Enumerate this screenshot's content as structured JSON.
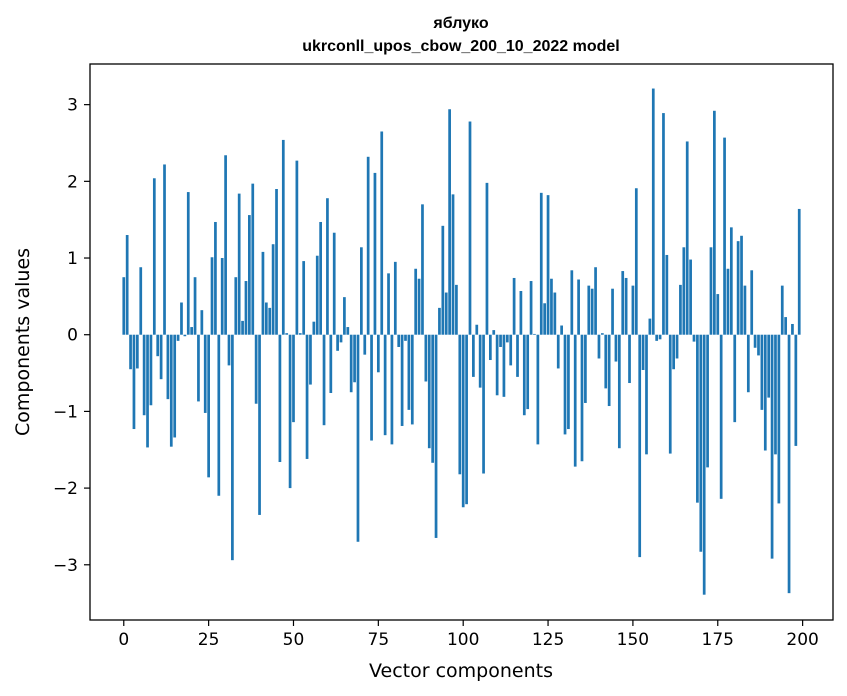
{
  "chart_data": {
    "type": "bar",
    "title_line1": "яблуко",
    "title_line2": "ukrconll_upos_cbow_200_10_2022 model",
    "xlabel": "Vector components",
    "ylabel": "Components values",
    "xlim": [
      -9.95,
      208.95
    ],
    "ylim": [
      -3.72,
      3.53
    ],
    "xticks": [
      0,
      25,
      50,
      75,
      100,
      125,
      150,
      175,
      200
    ],
    "yticks": [
      -3,
      -2,
      -1,
      0,
      1,
      2,
      3
    ],
    "ytick_labels": [
      "−3",
      "−2",
      "−1",
      "0",
      "1",
      "2",
      "3"
    ],
    "grid": false,
    "legend": "none",
    "bar_color": "#1f77b4",
    "x": [
      0,
      1,
      2,
      3,
      4,
      5,
      6,
      7,
      8,
      9,
      10,
      11,
      12,
      13,
      14,
      15,
      16,
      17,
      18,
      19,
      20,
      21,
      22,
      23,
      24,
      25,
      26,
      27,
      28,
      29,
      30,
      31,
      32,
      33,
      34,
      35,
      36,
      37,
      38,
      39,
      40,
      41,
      42,
      43,
      44,
      45,
      46,
      47,
      48,
      49,
      50,
      51,
      52,
      53,
      54,
      55,
      56,
      57,
      58,
      59,
      60,
      61,
      62,
      63,
      64,
      65,
      66,
      67,
      68,
      69,
      70,
      71,
      72,
      73,
      74,
      75,
      76,
      77,
      78,
      79,
      80,
      81,
      82,
      83,
      84,
      85,
      86,
      87,
      88,
      89,
      90,
      91,
      92,
      93,
      94,
      95,
      96,
      97,
      98,
      99,
      100,
      101,
      102,
      103,
      104,
      105,
      106,
      107,
      108,
      109,
      110,
      111,
      112,
      113,
      114,
      115,
      116,
      117,
      118,
      119,
      120,
      121,
      122,
      123,
      124,
      125,
      126,
      127,
      128,
      129,
      130,
      131,
      132,
      133,
      134,
      135,
      136,
      137,
      138,
      139,
      140,
      141,
      142,
      143,
      144,
      145,
      146,
      147,
      148,
      149,
      150,
      151,
      152,
      153,
      154,
      155,
      156,
      157,
      158,
      159,
      160,
      161,
      162,
      163,
      164,
      165,
      166,
      167,
      168,
      169,
      170,
      171,
      172,
      173,
      174,
      175,
      176,
      177,
      178,
      179,
      180,
      181,
      182,
      183,
      184,
      185,
      186,
      187,
      188,
      189,
      190,
      191,
      192,
      193,
      194,
      195,
      196,
      197,
      198,
      199
    ],
    "values": [
      0.75,
      1.3,
      -0.45,
      -1.23,
      -0.44,
      0.88,
      -1.05,
      -1.47,
      -0.92,
      2.04,
      -0.28,
      -0.58,
      2.22,
      -0.84,
      -1.46,
      -1.34,
      -0.08,
      0.42,
      -0.02,
      1.86,
      0.1,
      0.75,
      -0.87,
      0.32,
      -1.02,
      -1.86,
      1.01,
      1.47,
      -2.1,
      1.0,
      2.34,
      -0.4,
      -2.94,
      0.75,
      1.84,
      0.18,
      0.7,
      1.56,
      1.97,
      -0.9,
      -2.35,
      1.08,
      0.42,
      0.35,
      1.18,
      1.9,
      -1.66,
      2.54,
      0.02,
      -2.0,
      -1.14,
      2.27,
      0.02,
      0.96,
      -1.62,
      -0.65,
      0.17,
      1.03,
      1.47,
      -1.18,
      1.78,
      -0.76,
      1.33,
      -0.21,
      -0.1,
      0.49,
      0.1,
      -0.75,
      -0.62,
      -2.7,
      1.14,
      -0.26,
      2.32,
      -1.38,
      2.11,
      -0.49,
      2.65,
      -1.31,
      0.8,
      -1.43,
      0.95,
      -0.16,
      -1.19,
      -0.08,
      -0.98,
      -1.17,
      0.86,
      0.73,
      1.7,
      -0.61,
      -1.48,
      -1.67,
      -2.65,
      0.35,
      1.42,
      0.55,
      2.94,
      1.83,
      0.65,
      -1.82,
      -2.25,
      -2.21,
      2.78,
      -0.55,
      0.13,
      -0.69,
      -1.81,
      1.98,
      -0.33,
      0.06,
      -0.79,
      -0.16,
      -0.81,
      -0.1,
      -0.4,
      0.74,
      -0.55,
      0.57,
      -1.05,
      -0.97,
      0.7,
      0.01,
      -1.43,
      1.85,
      0.41,
      1.82,
      0.73,
      0.55,
      -0.44,
      0.12,
      -1.3,
      -1.23,
      0.84,
      -1.72,
      0.72,
      -1.65,
      -0.89,
      0.64,
      0.6,
      0.88,
      -0.31,
      0.02,
      -0.7,
      -0.93,
      0.6,
      -0.35,
      -1.48,
      0.83,
      0.74,
      -0.63,
      0.64,
      1.91,
      -2.9,
      -0.46,
      -1.56,
      0.21,
      3.21,
      -0.08,
      -0.06,
      2.89,
      1.04,
      -1.55,
      -0.45,
      -0.31,
      0.65,
      1.14,
      2.52,
      0.98,
      -0.09,
      -2.19,
      -2.83,
      -3.39,
      -1.73,
      1.14,
      2.92,
      0.53,
      -2.14,
      2.57,
      0.86,
      1.4,
      -1.14,
      1.22,
      1.29,
      0.64,
      -0.75,
      0.84,
      -0.17,
      -0.27,
      -0.98,
      -1.51,
      -0.82,
      -2.92,
      -1.56,
      -2.2,
      0.64,
      0.23,
      -3.37,
      0.14,
      -1.45,
      1.64
    ]
  }
}
